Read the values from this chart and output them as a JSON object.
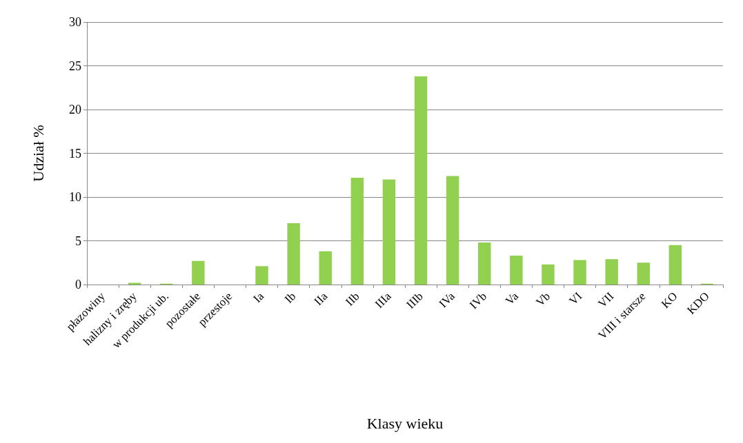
{
  "chart_data": {
    "type": "bar",
    "xlabel": "Klasy wieku",
    "ylabel": "Udział %",
    "categories": [
      "płazowiny",
      "halizny i zręby",
      "w produkcji ub.",
      "pozostałe",
      "przestoje",
      "Ia",
      "Ib",
      "IIa",
      "IIb",
      "IIIa",
      "IIIb",
      "IVa",
      "IVb",
      "Va",
      "Vb",
      "VI",
      "VII",
      "VIII i starsze",
      "KO",
      "KDO"
    ],
    "values": [
      0,
      0.2,
      0.1,
      2.7,
      0,
      2.1,
      7.0,
      3.8,
      12.2,
      12.0,
      23.8,
      12.4,
      4.8,
      3.3,
      2.3,
      2.8,
      2.9,
      2.5,
      4.5,
      0.1
    ],
    "color": "#92d050",
    "ylim": [
      0,
      30
    ],
    "yticks": [
      0,
      5,
      10,
      15,
      20,
      25,
      30
    ],
    "grid": "y"
  }
}
